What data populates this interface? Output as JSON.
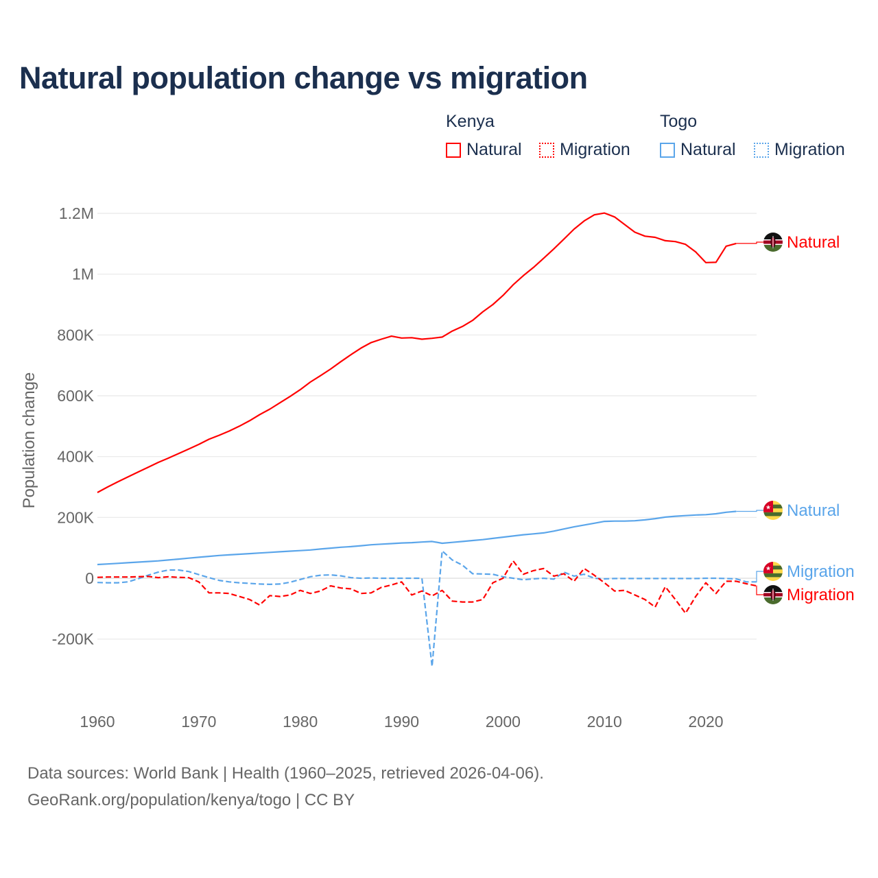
{
  "title": "Natural population change vs migration",
  "legend": {
    "groups": [
      {
        "label": "Kenya",
        "items": [
          {
            "label": "Natural",
            "style": "solid",
            "color": "#ff0000"
          },
          {
            "label": "Migration",
            "style": "dotted",
            "color": "#ff0000"
          }
        ]
      },
      {
        "label": "Togo",
        "items": [
          {
            "label": "Natural",
            "style": "solid",
            "color": "#5aa5ea"
          },
          {
            "label": "Migration",
            "style": "dotted",
            "color": "#5aa5ea"
          }
        ]
      }
    ]
  },
  "footer": {
    "line1": "Data sources: World Bank | Health (1960–2025, retrieved 2026-04-06).",
    "line2": "GeoRank.org/population/kenya/togo | CC BY"
  },
  "chart_data": {
    "type": "line",
    "title": "Natural population change vs migration",
    "xlabel": "",
    "ylabel": "Population change",
    "xlim": [
      1960,
      2025
    ],
    "ylim": [
      -300000,
      1250000
    ],
    "x_ticks": [
      1960,
      1970,
      1980,
      1990,
      2000,
      2010,
      2020
    ],
    "x_tick_labels": [
      "1960",
      "1970",
      "1980",
      "1990",
      "2000",
      "2010",
      "2020"
    ],
    "y_ticks": [
      -200000,
      0,
      200000,
      400000,
      600000,
      800000,
      1000000,
      1200000
    ],
    "y_tick_labels": [
      "-200K",
      "0",
      "200K",
      "400K",
      "600K",
      "800K",
      "1M",
      "1.2M"
    ],
    "grid": true,
    "legend_position": "top-right",
    "series": [
      {
        "name": "Kenya Natural",
        "end_label": "Natural",
        "country": "Kenya",
        "color": "#ff0000",
        "dash": "solid",
        "start_year": 1960,
        "values": [
          282000,
          300000,
          317000,
          333000,
          349000,
          365000,
          381000,
          395000,
          410000,
          425000,
          440000,
          457000,
          470000,
          484000,
          500000,
          518000,
          538000,
          556000,
          577000,
          598000,
          620000,
          645000,
          666000,
          688000,
          712000,
          735000,
          757000,
          775000,
          786000,
          796000,
          790000,
          791000,
          786000,
          789000,
          793000,
          813000,
          828000,
          848000,
          876000,
          900000,
          930000,
          965000,
          995000,
          1022000,
          1052000,
          1083000,
          1115000,
          1148000,
          1175000,
          1195000,
          1201000,
          1188000,
          1163000,
          1138000,
          1125000,
          1121000,
          1110000,
          1107000,
          1098000,
          1073000,
          1038000,
          1039000,
          1092000,
          1101000
        ]
      },
      {
        "name": "Togo Natural",
        "end_label": "Natural",
        "country": "Togo",
        "color": "#5aa5ea",
        "dash": "solid",
        "start_year": 1960,
        "values": [
          45000,
          47000,
          49000,
          51000,
          53000,
          55000,
          57000,
          60000,
          63000,
          66000,
          69000,
          72000,
          75000,
          77000,
          79000,
          81000,
          83000,
          85000,
          87000,
          89000,
          91000,
          93000,
          96000,
          99000,
          102000,
          104000,
          107000,
          110000,
          112000,
          114000,
          116000,
          117000,
          119000,
          121000,
          115000,
          118000,
          121000,
          124000,
          127000,
          131000,
          135000,
          139000,
          143000,
          146000,
          149000,
          155000,
          162000,
          169000,
          175000,
          181000,
          187000,
          188000,
          188000,
          189000,
          192000,
          196000,
          201000,
          204000,
          206000,
          208000,
          209000,
          212000,
          217000,
          220000
        ]
      },
      {
        "name": "Togo Migration",
        "end_label": "Migration",
        "country": "Togo",
        "color": "#5aa5ea",
        "dash": "dashed",
        "start_year": 1960,
        "values": [
          -14000,
          -15000,
          -15000,
          -12000,
          -2000,
          10000,
          20000,
          27000,
          27000,
          22000,
          12000,
          2000,
          -7000,
          -12000,
          -15000,
          -17000,
          -19000,
          -20000,
          -19000,
          -13000,
          -4000,
          5000,
          10000,
          11000,
          8000,
          2000,
          0,
          1000,
          0,
          0,
          0,
          0,
          0,
          -290000,
          90000,
          60000,
          43000,
          15000,
          14000,
          13000,
          5000,
          0,
          -5000,
          -2000,
          0,
          -3000,
          20000,
          7000,
          13000,
          0,
          -2000,
          -1000,
          -1000,
          -1000,
          -1000,
          -1000,
          -1000,
          -1000,
          -1000,
          -1000,
          0,
          0,
          -1000,
          -2000,
          -12000,
          -12000
        ]
      },
      {
        "name": "Kenya Migration",
        "end_label": "Migration",
        "country": "Kenya",
        "color": "#ff0000",
        "dash": "dashed",
        "start_year": 1960,
        "values": [
          3000,
          4000,
          4000,
          4000,
          5000,
          6000,
          2000,
          5000,
          3000,
          2000,
          -12000,
          -48000,
          -48000,
          -50000,
          -60000,
          -70000,
          -88000,
          -57000,
          -60000,
          -55000,
          -40000,
          -50000,
          -42000,
          -25000,
          -32000,
          -35000,
          -50000,
          -48000,
          -30000,
          -22000,
          -12000,
          -55000,
          -42000,
          -58000,
          -40000,
          -75000,
          -78000,
          -78000,
          -70000,
          -15000,
          0,
          57000,
          13000,
          25000,
          32000,
          7000,
          15000,
          -10000,
          32000,
          10000,
          -15000,
          -42000,
          -40000,
          -55000,
          -70000,
          -95000,
          -28000,
          -70000,
          -115000,
          -60000,
          -15000,
          -50000,
          -10000,
          -10000,
          -18000,
          -25000
        ]
      }
    ]
  }
}
